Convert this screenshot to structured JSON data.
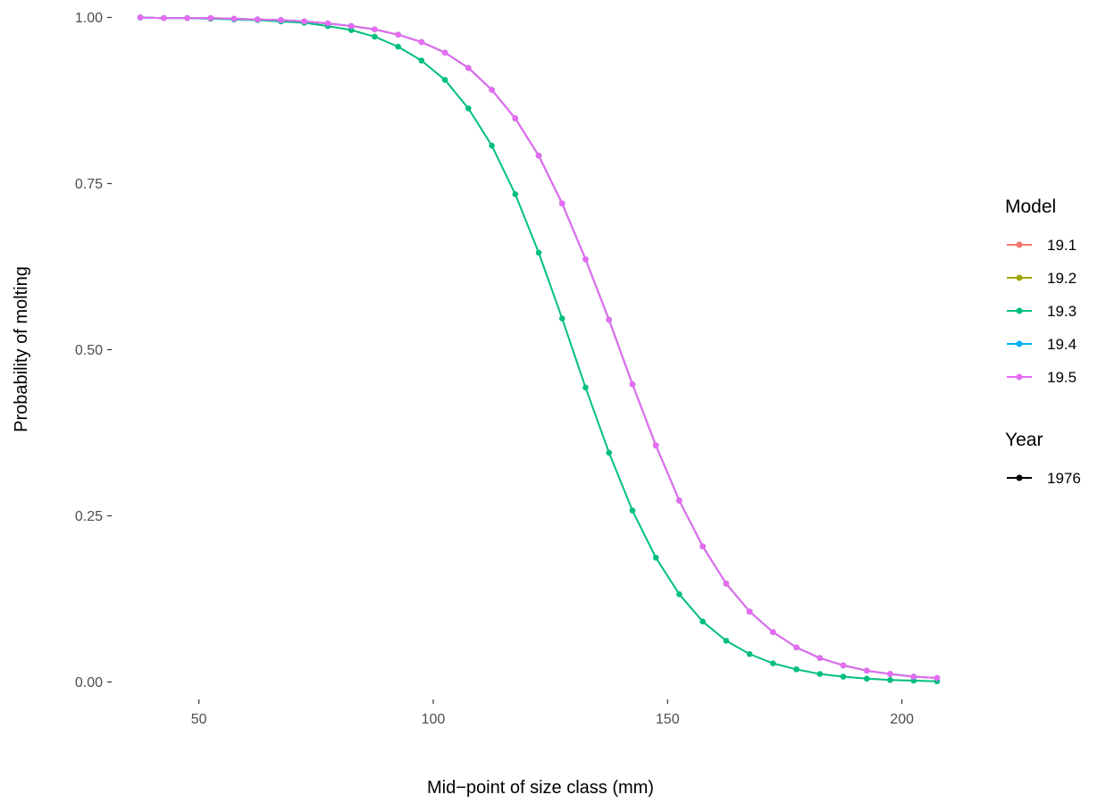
{
  "chart_data": {
    "type": "line",
    "xlabel": "Mid−point of size class (mm)",
    "ylabel": "Probability of molting",
    "xlim": [
      35,
      210
    ],
    "ylim": [
      0,
      1
    ],
    "x_ticks": [
      50,
      100,
      150,
      200
    ],
    "x_tick_labels": [
      "50",
      "100",
      "150",
      "200"
    ],
    "y_ticks": [
      0,
      0.25,
      0.5,
      0.75,
      1
    ],
    "y_tick_labels": [
      "0.00",
      "0.25",
      "0.50",
      "0.75",
      "1.00"
    ],
    "grid": false,
    "legend_position": "right",
    "x": [
      37.5,
      42.5,
      47.5,
      52.5,
      57.5,
      62.5,
      67.5,
      72.5,
      77.5,
      82.5,
      87.5,
      92.5,
      97.5,
      102.5,
      107.5,
      112.5,
      117.5,
      122.5,
      127.5,
      132.5,
      137.5,
      142.5,
      147.5,
      152.5,
      157.5,
      162.5,
      167.5,
      172.5,
      177.5,
      182.5,
      187.5,
      192.5,
      197.5,
      202.5,
      207.5
    ],
    "series": [
      {
        "name": "19.1",
        "color": "#f8766d",
        "values": [
          1.0,
          0.999,
          0.999,
          0.999,
          0.998,
          0.997,
          0.996,
          0.994,
          0.991,
          0.987,
          0.982,
          0.974,
          0.963,
          0.947,
          0.924,
          0.891,
          0.848,
          0.792,
          0.72,
          0.636,
          0.545,
          0.448,
          0.356,
          0.273,
          0.204,
          0.148,
          0.106,
          0.075,
          0.052,
          0.036,
          0.025,
          0.017,
          0.012,
          0.008,
          0.006
        ]
      },
      {
        "name": "19.2",
        "color": "#a3a500",
        "values": [
          1.0,
          0.999,
          0.999,
          0.999,
          0.998,
          0.997,
          0.996,
          0.994,
          0.991,
          0.987,
          0.982,
          0.974,
          0.963,
          0.947,
          0.924,
          0.891,
          0.848,
          0.792,
          0.72,
          0.636,
          0.545,
          0.448,
          0.356,
          0.273,
          0.204,
          0.148,
          0.106,
          0.075,
          0.052,
          0.036,
          0.025,
          0.017,
          0.012,
          0.008,
          0.006
        ]
      },
      {
        "name": "19.3",
        "color": "#00bf7d",
        "values": [
          1.0,
          0.999,
          0.999,
          0.998,
          0.997,
          0.996,
          0.994,
          0.992,
          0.987,
          0.981,
          0.971,
          0.956,
          0.935,
          0.906,
          0.863,
          0.807,
          0.734,
          0.646,
          0.547,
          0.443,
          0.345,
          0.258,
          0.187,
          0.132,
          0.091,
          0.062,
          0.042,
          0.028,
          0.019,
          0.012,
          0.008,
          0.005,
          0.003,
          0.002,
          0.001
        ]
      },
      {
        "name": "19.4",
        "color": "#00b0f6",
        "values": [
          1.0,
          0.999,
          0.999,
          0.999,
          0.998,
          0.997,
          0.996,
          0.994,
          0.991,
          0.987,
          0.982,
          0.974,
          0.963,
          0.947,
          0.924,
          0.891,
          0.848,
          0.792,
          0.72,
          0.636,
          0.545,
          0.448,
          0.356,
          0.273,
          0.204,
          0.148,
          0.106,
          0.075,
          0.052,
          0.036,
          0.025,
          0.017,
          0.012,
          0.008,
          0.006
        ]
      },
      {
        "name": "19.5",
        "color": "#e76bf3",
        "values": [
          1.0,
          0.999,
          0.999,
          0.999,
          0.998,
          0.997,
          0.996,
          0.994,
          0.991,
          0.987,
          0.982,
          0.974,
          0.963,
          0.947,
          0.924,
          0.891,
          0.848,
          0.792,
          0.72,
          0.636,
          0.545,
          0.448,
          0.356,
          0.273,
          0.204,
          0.148,
          0.106,
          0.075,
          0.052,
          0.036,
          0.025,
          0.017,
          0.012,
          0.008,
          0.006
        ]
      }
    ],
    "legends": [
      {
        "title": "Model",
        "entries": [
          {
            "label": "19.1",
            "color": "#f8766d"
          },
          {
            "label": "19.2",
            "color": "#a3a500"
          },
          {
            "label": "19.3",
            "color": "#00bf7d"
          },
          {
            "label": "19.4",
            "color": "#00b0f6"
          },
          {
            "label": "19.5",
            "color": "#e76bf3"
          }
        ]
      },
      {
        "title": "Year",
        "entries": [
          {
            "label": "1976",
            "color": "#000000"
          }
        ]
      }
    ]
  }
}
